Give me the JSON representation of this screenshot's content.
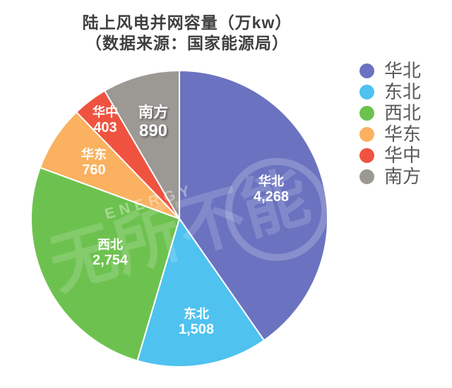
{
  "chart_data": {
    "type": "pie",
    "title": "陆上风电并网容量（万kw）",
    "source_note": "（数据来源：国家能源局）",
    "categories": [
      "华北",
      "东北",
      "西北",
      "华东",
      "华中",
      "南方"
    ],
    "values": [
      4268,
      1508,
      2754,
      760,
      403,
      890
    ],
    "value_labels": [
      "4,268",
      "1,508",
      "2,754",
      "760",
      "403",
      "890"
    ],
    "colors": [
      "#6B73C0",
      "#4FC2EF",
      "#6DC24F",
      "#FAB160",
      "#EF5340",
      "#9C9894"
    ],
    "start_angle_deg": 0,
    "direction": "clockwise",
    "legend_position": "right",
    "label_radius_frac": [
      0.65,
      0.71,
      0.52,
      0.69,
      0.83,
      0.67
    ],
    "label_name_font_px": [
      18,
      18,
      18,
      18,
      18,
      21
    ],
    "label_value_font_px": [
      20,
      20,
      20,
      20,
      20,
      24
    ],
    "label_shadow": [
      false,
      false,
      false,
      false,
      false,
      true
    ]
  },
  "watermark": {
    "text_en": "ENERGY",
    "text_cn": "无所不能"
  },
  "colors": {
    "background": "#FFFFFF",
    "title_text": "#3F3F3F",
    "legend_text": "#595959",
    "slice_label_text": "#FFFFFF",
    "slice_border": "#FFFFFF"
  }
}
